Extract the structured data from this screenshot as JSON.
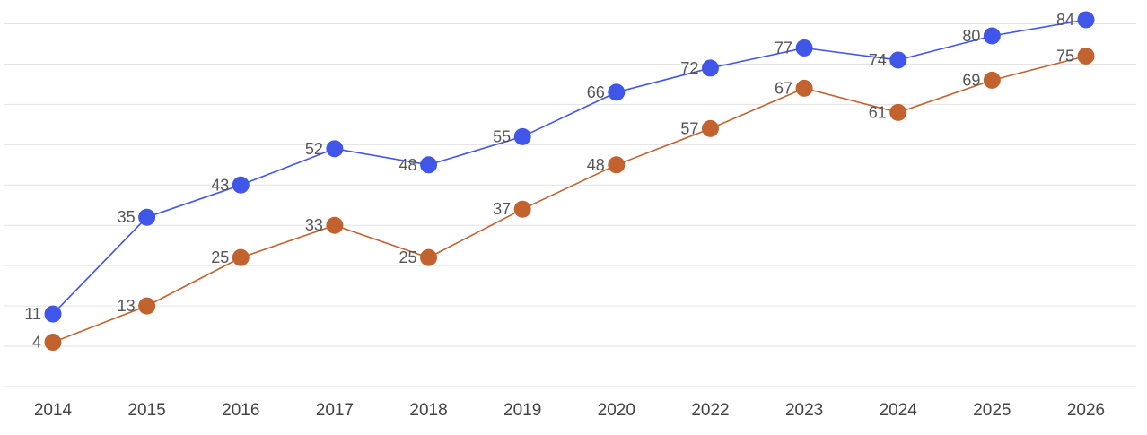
{
  "chart_data": {
    "type": "line",
    "categories": [
      "2014",
      "2015",
      "2016",
      "2017",
      "2018",
      "2019",
      "2020",
      "2022",
      "2023",
      "2024",
      "2025",
      "2026"
    ],
    "series": [
      {
        "values": [
          11,
          35,
          43,
          52,
          48,
          55,
          66,
          72,
          77,
          74,
          80,
          84
        ],
        "color": "#3f56e8"
      },
      {
        "values": [
          4,
          13,
          25,
          33,
          25,
          37,
          48,
          57,
          67,
          61,
          69,
          75
        ],
        "color": "#c2622f"
      }
    ],
    "ylim": [
      -7,
      84
    ],
    "y_gridlines": [
      -7,
      3,
      13,
      23,
      33,
      43,
      53,
      63,
      73,
      83
    ],
    "grid": true,
    "data_labels": true,
    "title": "",
    "xlabel": "",
    "ylabel": ""
  }
}
